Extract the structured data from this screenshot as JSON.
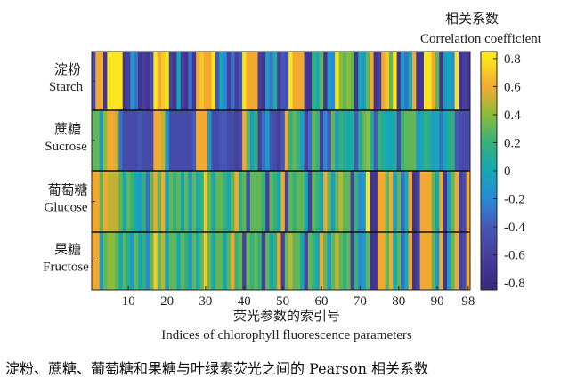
{
  "chart_data": {
    "type": "heatmap",
    "colorbar_title_cn": "相关系数",
    "colorbar_title_en": "Correlation coefficient",
    "xlabel_cn": "荧光参数的索引号",
    "xlabel_en": "Indices of chlorophyll fluorescence parameters",
    "x_ticks": [
      "10",
      "20",
      "30",
      "40",
      "50",
      "60",
      "70",
      "80",
      "90",
      "98"
    ],
    "x_tick_values": [
      10,
      20,
      30,
      40,
      50,
      60,
      70,
      80,
      90,
      98
    ],
    "colorbar_ticks": [
      "0.8",
      "0.6",
      "0.4",
      "0.2",
      "0",
      "-0.2",
      "-0.4",
      "-0.6",
      "-0.8"
    ],
    "colorbar_tick_values": [
      0.8,
      0.6,
      0.4,
      0.2,
      0,
      -0.2,
      -0.4,
      -0.6,
      -0.8
    ],
    "color_range": [
      -0.85,
      0.85
    ],
    "n_columns": 98,
    "rows": [
      {
        "name_cn": "淀粉",
        "name_en": "Starch",
        "values": [
          -0.5,
          0.6,
          0.6,
          -0.7,
          0.8,
          0.8,
          0.8,
          0.8,
          -0.7,
          -0.6,
          -0.1,
          -0.3,
          -0.7,
          -0.6,
          -0.7,
          -0.5,
          0.8,
          0.6,
          0.7,
          0.8,
          -0.6,
          -0.7,
          0.0,
          -0.6,
          -0.7,
          -0.3,
          -0.7,
          0.6,
          0.7,
          0.6,
          0.6,
          0.8,
          -0.4,
          0.0,
          -0.2,
          -0.6,
          -0.3,
          -0.6,
          -0.4,
          0.8,
          0.6,
          0.6,
          0.6,
          -0.6,
          -0.7,
          -0.1,
          -0.3,
          0.1,
          -0.6,
          -0.4,
          -0.5,
          0.8,
          0.6,
          0.6,
          0.6,
          -0.7,
          -0.7,
          0.2,
          0.0,
          0.3,
          -0.7,
          -0.1,
          -0.2,
          0.8,
          0.4,
          0.3,
          0.4,
          0.3,
          -0.7,
          0.0,
          -0.1,
          0.3,
          0.6,
          -0.7,
          -0.6,
          0.6,
          0.7,
          0.3,
          0.8,
          -0.7,
          -0.1,
          -0.3,
          0.0,
          0.6,
          -0.7,
          -0.7,
          0.8,
          0.8,
          0.6,
          0.3,
          -0.7,
          -0.1,
          0.0,
          -0.2,
          0.8,
          -0.7,
          -0.6,
          -0.7
        ]
      },
      {
        "name_cn": "蔗糖",
        "name_en": "Sucrose",
        "values": [
          0.3,
          0.3,
          -0.1,
          0.4,
          0.6,
          0.6,
          0.5,
          -0.3,
          -0.5,
          -0.5,
          -0.5,
          -0.5,
          -0.4,
          -0.5,
          -0.5,
          -0.5,
          0.6,
          0.6,
          0.5,
          -0.1,
          -0.5,
          -0.5,
          -0.5,
          -0.5,
          -0.5,
          -0.5,
          -0.4,
          0.6,
          0.6,
          0.6,
          -0.1,
          -0.5,
          -0.5,
          -0.4,
          -0.4,
          -0.5,
          -0.5,
          -0.6,
          -0.5,
          0.6,
          0.3,
          -0.1,
          0.2,
          -0.6,
          -0.3,
          -0.1,
          -0.4,
          -0.5,
          -0.6,
          -0.4,
          0.6,
          0.2,
          0.3,
          0.2,
          -0.1,
          -0.6,
          -0.3,
          0.3,
          0.2,
          -0.6,
          -0.2,
          -0.4,
          0.3,
          -0.1,
          0.2,
          0.1,
          0.0,
          0.1,
          -0.4,
          0.1,
          0.3,
          0.4,
          0.1,
          -0.4,
          0.2,
          0.1,
          0.0,
          0.0,
          0.1,
          -0.5,
          0.2,
          0.3,
          0.3,
          0.3,
          -0.1,
          0.0,
          0.2,
          0.1,
          -0.1,
          0.0,
          -0.3,
          0.0,
          0.1,
          0.2,
          -0.4,
          -0.5,
          -0.5,
          -0.5
        ]
      },
      {
        "name_cn": "葡萄糖",
        "name_en": "Glucose",
        "values": [
          0.6,
          0.6,
          0.3,
          0.6,
          0.5,
          0.5,
          0.5,
          0.3,
          0.0,
          0.3,
          0.2,
          0.0,
          -0.1,
          0.2,
          -0.3,
          0.3,
          0.6,
          0.3,
          0.6,
          0.0,
          0.3,
          0.2,
          0.3,
          0.0,
          0.3,
          -0.1,
          0.3,
          0.0,
          0.2,
          0.7,
          0.3,
          0.0,
          0.3,
          0.3,
          0.2,
          0.0,
          0.3,
          0.6,
          0.2,
          0.3,
          -0.5,
          0.3,
          0.3,
          0.3,
          0.2,
          -0.6,
          0.3,
          0.2,
          0.0,
          0.6,
          -0.6,
          0.3,
          0.2,
          0.3,
          0.3,
          0.0,
          -0.6,
          0.3,
          0.2,
          0.0,
          0.6,
          0.3,
          -0.1,
          0.3,
          0.5,
          0.3,
          0.3,
          -0.6,
          0.2,
          -0.2,
          -0.1,
          0.8,
          -0.7,
          -0.7,
          0.6,
          0.6,
          0.3,
          0.6,
          -0.1,
          0.3,
          -0.3,
          0.0,
          0.6,
          -0.7,
          -0.6,
          0.6,
          0.6,
          0.6,
          0.3,
          0.0,
          0.6,
          -0.7,
          -0.1,
          0.3,
          0.6,
          -0.6,
          -0.5,
          0.6
        ]
      },
      {
        "name_cn": "果糖",
        "name_en": "Fructose",
        "values": [
          0.6,
          0.6,
          -0.1,
          0.3,
          0.4,
          0.4,
          0.3,
          0.0,
          0.3,
          0.1,
          -0.1,
          0.3,
          0.0,
          0.2,
          -0.2,
          0.3,
          0.7,
          0.3,
          0.5,
          0.0,
          0.3,
          0.3,
          0.0,
          0.3,
          0.2,
          -0.1,
          0.3,
          0.0,
          0.3,
          0.7,
          0.3,
          0.0,
          0.3,
          0.3,
          0.0,
          0.3,
          0.6,
          0.2,
          0.3,
          -0.6,
          0.3,
          0.2,
          0.3,
          0.2,
          -0.6,
          0.3,
          0.0,
          0.2,
          0.6,
          -0.6,
          0.3,
          0.5,
          0.3,
          0.3,
          0.0,
          -0.6,
          0.3,
          0.2,
          0.0,
          0.6,
          0.3,
          -0.1,
          0.3,
          0.5,
          0.3,
          0.2,
          0.3,
          -0.6,
          0.2,
          -0.2,
          -0.1,
          0.3,
          -0.7,
          -0.7,
          0.6,
          0.6,
          0.3,
          0.6,
          0.0,
          0.3,
          -0.3,
          0.0,
          0.6,
          -0.7,
          -0.6,
          0.6,
          0.6,
          0.6,
          0.3,
          -0.1,
          0.6,
          -0.7,
          -0.1,
          0.3,
          0.6,
          -0.6,
          -0.5,
          0.6
        ]
      }
    ],
    "colormap": [
      "#3b2a84",
      "#463f9c",
      "#4558b8",
      "#2a8ad8",
      "#14a8b4",
      "#35b07a",
      "#8cbc3a",
      "#f2a930",
      "#f9e61e"
    ]
  },
  "caption": "淀粉、蔗糖、葡萄糖和果糖与叶绿素荧光之间的 Pearson 相关系数"
}
